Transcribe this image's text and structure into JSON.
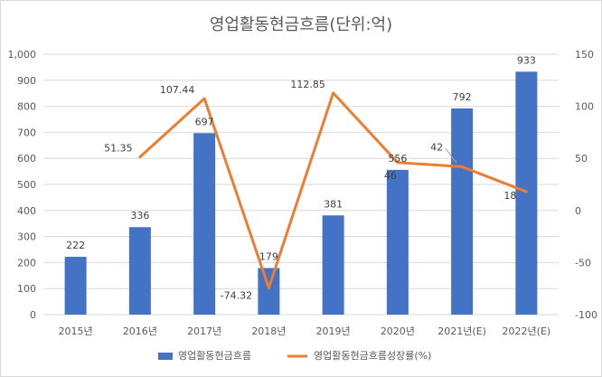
{
  "chart_data": {
    "type": "bar",
    "title": "영업활동현금흐름(단위:억)",
    "categories": [
      "2015년",
      "2016년",
      "2017년",
      "2018년",
      "2019년",
      "2020년",
      "2021년(E)",
      "2022년(E)"
    ],
    "series": [
      {
        "name": "영업활동현금흐름",
        "type": "bar",
        "axis": "left",
        "color": "#4472C4",
        "values": [
          222,
          336,
          697,
          179,
          381,
          556,
          792,
          933
        ],
        "labels": [
          "222",
          "336",
          "697",
          "179",
          "381",
          "556",
          "792",
          "933"
        ]
      },
      {
        "name": "영업활동현금흐름성장률(%)",
        "type": "line",
        "axis": "right",
        "color": "#ED7D31",
        "values": [
          null,
          51.35,
          107.44,
          -74.32,
          112.85,
          46,
          42,
          18
        ],
        "labels": [
          "",
          "51.35",
          "107.44",
          "-74.32",
          "112.85",
          "46",
          "42",
          "18"
        ]
      }
    ],
    "y_left": {
      "min": 0,
      "max": 1000,
      "step": 100,
      "tick_labels": [
        "0",
        "100",
        "200",
        "300",
        "400",
        "500",
        "600",
        "700",
        "800",
        "900",
        "1,000"
      ]
    },
    "y_right": {
      "min": -100,
      "max": 150,
      "step": 50,
      "tick_labels": [
        "-100",
        "-50",
        "0",
        "50",
        "100",
        "150"
      ]
    },
    "grid": true,
    "legend_position": "bottom"
  }
}
